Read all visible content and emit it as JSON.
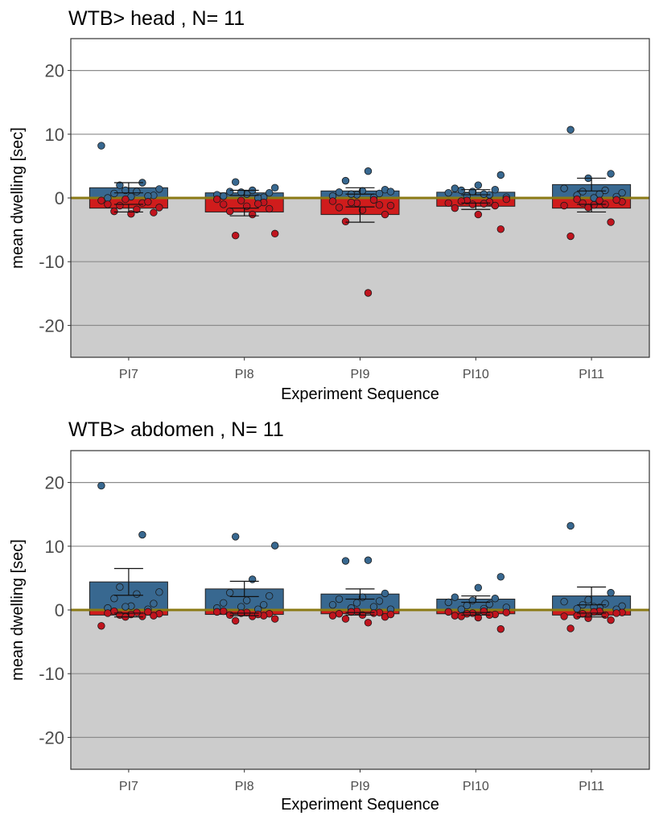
{
  "colors": {
    "positive_bar": "#386890",
    "negative_bar": "#d01c1c",
    "positive_point": "#386890",
    "negative_point": "#c0141e",
    "zero_line": "#8b7a14",
    "panel_bottom": "#cccccc",
    "gridline": "#8c8c8c"
  },
  "chart_data": [
    {
      "type": "bar",
      "title": "WTB> head , N= 11",
      "xlabel": "Experiment Sequence",
      "ylabel": "mean dwelling [sec]",
      "ylim": [
        -25,
        25
      ],
      "yticks": [
        20,
        10,
        0,
        -10,
        -20
      ],
      "grid": true,
      "legend": "none",
      "categories": [
        "PI7",
        "PI8",
        "PI9",
        "PI10",
        "PI11"
      ],
      "series": [
        {
          "values": [
            1.6,
            0.8,
            1.1,
            0.9,
            2.1
          ],
          "error": [
            0.8,
            0.4,
            0.5,
            0.4,
            1.0
          ],
          "points": [
            [
              8.2,
              2.4,
              2.0,
              1.4,
              1.0,
              0.7,
              0.4,
              0.2,
              0.0,
              0.3,
              1.2
            ],
            [
              2.5,
              1.6,
              1.2,
              1.0,
              0.8,
              0.6,
              0.3,
              0.1,
              0.9,
              0.5,
              0.0
            ],
            [
              4.2,
              2.7,
              1.3,
              1.1,
              0.9,
              0.7,
              0.5,
              0.3,
              0.1,
              0.6,
              1.0
            ],
            [
              3.6,
              2.0,
              1.5,
              1.3,
              1.0,
              0.8,
              0.5,
              0.3,
              0.1,
              0.6,
              1.2
            ],
            [
              10.7,
              3.8,
              3.1,
              1.5,
              1.2,
              1.0,
              0.8,
              0.6,
              0.4,
              0.2,
              0.0
            ]
          ]
        },
        {
          "values": [
            -1.6,
            -2.2,
            -2.6,
            -1.3,
            -1.6
          ],
          "error": [
            0.6,
            0.6,
            1.2,
            0.5,
            0.6
          ],
          "points": [
            [
              -0.4,
              -0.8,
              -1.2,
              -1.5,
              -1.8,
              -2.1,
              -2.3,
              -2.5,
              -1.0,
              -0.6,
              -0.2
            ],
            [
              -5.9,
              -5.6,
              -2.6,
              -2.1,
              -1.7,
              -1.3,
              -1.0,
              -0.7,
              -0.4,
              -0.2,
              -0.9
            ],
            [
              -14.9,
              -3.7,
              -2.6,
              -1.9,
              -1.5,
              -1.1,
              -0.8,
              -0.5,
              -0.3,
              -0.7,
              -1.2
            ],
            [
              -4.9,
              -2.6,
              -1.6,
              -1.2,
              -1.0,
              -0.8,
              -0.6,
              -0.4,
              -0.2,
              -0.9,
              -0.5
            ],
            [
              -6.0,
              -3.8,
              -1.5,
              -1.2,
              -1.0,
              -0.8,
              -0.6,
              -0.4,
              -0.2,
              -0.3,
              -1.1
            ]
          ]
        }
      ]
    },
    {
      "type": "bar",
      "title": "WTB> abdomen , N= 11",
      "xlabel": "Experiment Sequence",
      "ylabel": "mean dwelling [sec]",
      "ylim": [
        -25,
        25
      ],
      "yticks": [
        20,
        10,
        0,
        -10,
        -20
      ],
      "grid": true,
      "legend": "none",
      "categories": [
        "PI7",
        "PI8",
        "PI9",
        "PI10",
        "PI11"
      ],
      "series": [
        {
          "values": [
            4.4,
            3.3,
            2.5,
            1.7,
            2.2
          ],
          "error": [
            2.1,
            1.2,
            0.8,
            0.5,
            1.4
          ],
          "points": [
            [
              19.5,
              11.8,
              3.6,
              2.8,
              2.5,
              1.8,
              1.0,
              0.6,
              0.3,
              0.1,
              0.5
            ],
            [
              11.5,
              10.1,
              4.8,
              2.7,
              2.2,
              1.5,
              1.1,
              0.8,
              0.5,
              0.3,
              0.1
            ],
            [
              7.8,
              7.7,
              2.6,
              2.0,
              1.7,
              1.4,
              1.1,
              0.8,
              0.5,
              0.3,
              0.1
            ],
            [
              5.2,
              3.5,
              2.0,
              1.8,
              1.5,
              1.2,
              0.9,
              0.7,
              0.4,
              0.2,
              0.1
            ],
            [
              13.2,
              2.7,
              1.6,
              1.3,
              1.0,
              0.8,
              0.6,
              0.4,
              0.2,
              0.1,
              0.5
            ]
          ]
        },
        {
          "values": [
            -0.8,
            -0.7,
            -0.6,
            -0.6,
            -0.8
          ],
          "error": [
            0.3,
            0.2,
            0.2,
            0.2,
            0.3
          ],
          "points": [
            [
              -2.5,
              -1.0,
              -0.8,
              -0.6,
              -0.4,
              -0.2,
              -0.9,
              -0.7,
              -0.5,
              -0.3,
              -1.1
            ],
            [
              -1.7,
              -1.4,
              -1.0,
              -0.8,
              -0.6,
              -0.4,
              -0.2,
              -0.9,
              -0.5,
              -0.3,
              -0.7
            ],
            [
              -2.0,
              -1.4,
              -1.1,
              -0.8,
              -0.6,
              -0.4,
              -0.2,
              -0.9,
              -0.5,
              -0.3,
              -0.7
            ],
            [
              -3.0,
              -1.2,
              -0.9,
              -0.7,
              -0.5,
              -0.3,
              -0.8,
              -0.6,
              -0.4,
              -0.2,
              -1.0
            ],
            [
              -2.9,
              -1.6,
              -1.3,
              -1.0,
              -0.8,
              -0.6,
              -0.4,
              -0.2,
              -0.9,
              -0.5,
              -0.3
            ]
          ]
        }
      ]
    }
  ]
}
